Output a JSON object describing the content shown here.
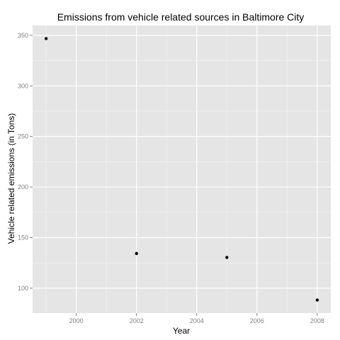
{
  "chart_data": {
    "type": "scatter",
    "title": "Emissions from vehicle related sources in Baltimore City",
    "xlabel": "Year",
    "ylabel": "Vehicle related emissions (in Tons)",
    "x": [
      1999,
      2002,
      2005,
      2008
    ],
    "y": [
      346.8,
      134.3,
      130.4,
      88.3
    ],
    "xlim": [
      1998.55,
      2008.45
    ],
    "ylim": [
      75.4,
      359.7
    ],
    "x_ticks": [
      2000,
      2002,
      2004,
      2006,
      2008
    ],
    "x_tick_labels": [
      "2000",
      "2002",
      "2004",
      "2006",
      "2008"
    ],
    "y_ticks": [
      100,
      150,
      200,
      250,
      300,
      350
    ],
    "y_tick_labels": [
      "100",
      "150",
      "200",
      "250",
      "300",
      "350"
    ],
    "grid": true,
    "legend": "none",
    "colors": {
      "panel": "#e5e5e5",
      "grid_major": "#ffffff",
      "grid_minor": "#f2f2f2",
      "point": "#000000",
      "tick_label": "#7f7f7f"
    }
  }
}
